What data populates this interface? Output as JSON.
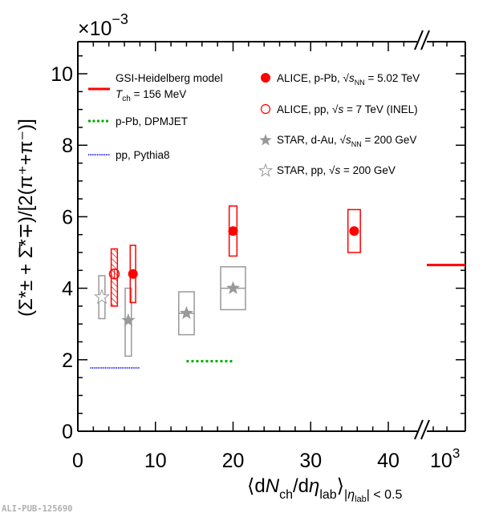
{
  "chart_data": {
    "type": "scatter",
    "title": "",
    "xlabel": "⟨dN_ch/dη_lab⟩ |η_lab| < 0.5",
    "ylabel": "(Σ*± + anti-Σ*∓)/[2(π⁺+π⁻)]",
    "y_multiplier": "×10⁻³",
    "xlim": [
      0,
      45
    ],
    "x_break": {
      "after": 44,
      "label_after_break": "10³"
    },
    "ylim": [
      0,
      11
    ],
    "x_ticks": [
      0,
      10,
      20,
      30,
      40
    ],
    "x_tick_labels": [
      "0",
      "10",
      "20",
      "30",
      "40"
    ],
    "y_ticks": [
      0,
      2,
      4,
      6,
      8,
      10
    ],
    "y_tick_labels": [
      "0",
      "2",
      "4",
      "6",
      "8",
      "10"
    ],
    "grid": false,
    "legend_placement": "top",
    "series": [
      {
        "name": "ALICE, p-Pb, √sNN = 5.02 TeV",
        "marker": "filled-circle",
        "color": "#ff0000",
        "points": [
          {
            "x": 7.1,
            "y": 4.4,
            "syst_low": 3.6,
            "syst_high": 5.2,
            "box_halfwidth": 0.35
          },
          {
            "x": 20.0,
            "y": 5.6,
            "syst_low": 4.9,
            "syst_high": 6.3,
            "box_halfwidth": 0.5
          },
          {
            "x": 35.6,
            "y": 5.6,
            "syst_low": 5.0,
            "syst_high": 6.2,
            "box_halfwidth": 0.8
          }
        ]
      },
      {
        "name": "ALICE, pp, √s = 7 TeV (INEL)",
        "marker": "open-circle",
        "color": "#ff0000",
        "hatched": true,
        "points": [
          {
            "x": 4.7,
            "y": 4.4,
            "syst_low": 3.5,
            "syst_high": 5.1,
            "box_halfwidth": 0.4
          }
        ]
      },
      {
        "name": "STAR, d-Au, √sNN = 200 GeV",
        "marker": "filled-star",
        "color": "#999999",
        "points": [
          {
            "x": 6.5,
            "y": 3.1,
            "syst_low": 2.1,
            "syst_high": 4.0,
            "box_halfwidth": 0.4
          },
          {
            "x": 14.0,
            "y": 3.3,
            "syst_low": 2.7,
            "syst_high": 3.9,
            "box_halfwidth": 1.0
          },
          {
            "x": 20.0,
            "y": 4.0,
            "syst_low": 3.4,
            "syst_high": 4.6,
            "box_halfwidth": 1.6
          }
        ]
      },
      {
        "name": "STAR, pp, √s = 200 GeV",
        "marker": "open-star",
        "color": "#999999",
        "points": [
          {
            "x": 3.1,
            "y": 3.75,
            "syst_low": 3.15,
            "syst_high": 4.35,
            "box_halfwidth": 0.4
          }
        ]
      }
    ],
    "models": [
      {
        "name": "GSI-Heidelberg model",
        "subtitle": "T_ch = 156 MeV",
        "style": "solid",
        "color": "#ff0000",
        "x_range": [
          44.8,
          1000
        ],
        "y": 4.65
      },
      {
        "name": "p-Pb, DPMJET",
        "style": "dotted",
        "color": "#00aa00",
        "x_range": [
          14,
          20
        ],
        "y": 1.96
      },
      {
        "name": "pp, Pythia8",
        "style": "dense-dotted",
        "color": "#3333ff",
        "x_range": [
          1.6,
          8
        ],
        "y": 1.77
      }
    ]
  },
  "legend": {
    "gsi_line1": "GSI-Heidelberg model",
    "gsi_T": "T",
    "gsi_ch": "ch",
    "gsi_line2_rest": " = 156 MeV",
    "dpmjet": "p-Pb, DPMJET",
    "pythia": "pp, Pythia8",
    "alice_ppb_a": "ALICE, p-Pb, ",
    "alice_ppb_s": "s",
    "alice_ppb_nn": "NN",
    "alice_ppb_b": " = 5.02 TeV",
    "alice_pp_a": "ALICE, pp, ",
    "alice_pp_s": "s",
    "alice_pp_b": " = 7 TeV (INEL)",
    "star_dau_a": "STAR, d-Au, ",
    "star_dau_s": "s",
    "star_dau_nn": "NN",
    "star_dau_b": " = 200 GeV",
    "star_pp_a": "STAR, pp, ",
    "star_pp_s": "s",
    "star_pp_b": " = 200 GeV"
  },
  "axis": {
    "multiplier_base": "×10",
    "multiplier_exp": "−3",
    "x_break_label_base": "10",
    "x_break_label_exp": "3",
    "xtitle_open": "⟨d",
    "xtitle_N": "N",
    "xtitle_ch": "ch",
    "xtitle_mid": "/d",
    "xtitle_eta": "η",
    "xtitle_lab": "lab",
    "xtitle_close": "⟩",
    "xtitle_cond_open": "|",
    "xtitle_cond_eta": "η",
    "xtitle_cond_lab": "lab",
    "xtitle_cond_rest": "| < 0.5",
    "ytitle": "(Σ*± + Σ̄*∓)/[2(π⁺+π⁻)]"
  },
  "watermark": "ALI-PUB-125690"
}
